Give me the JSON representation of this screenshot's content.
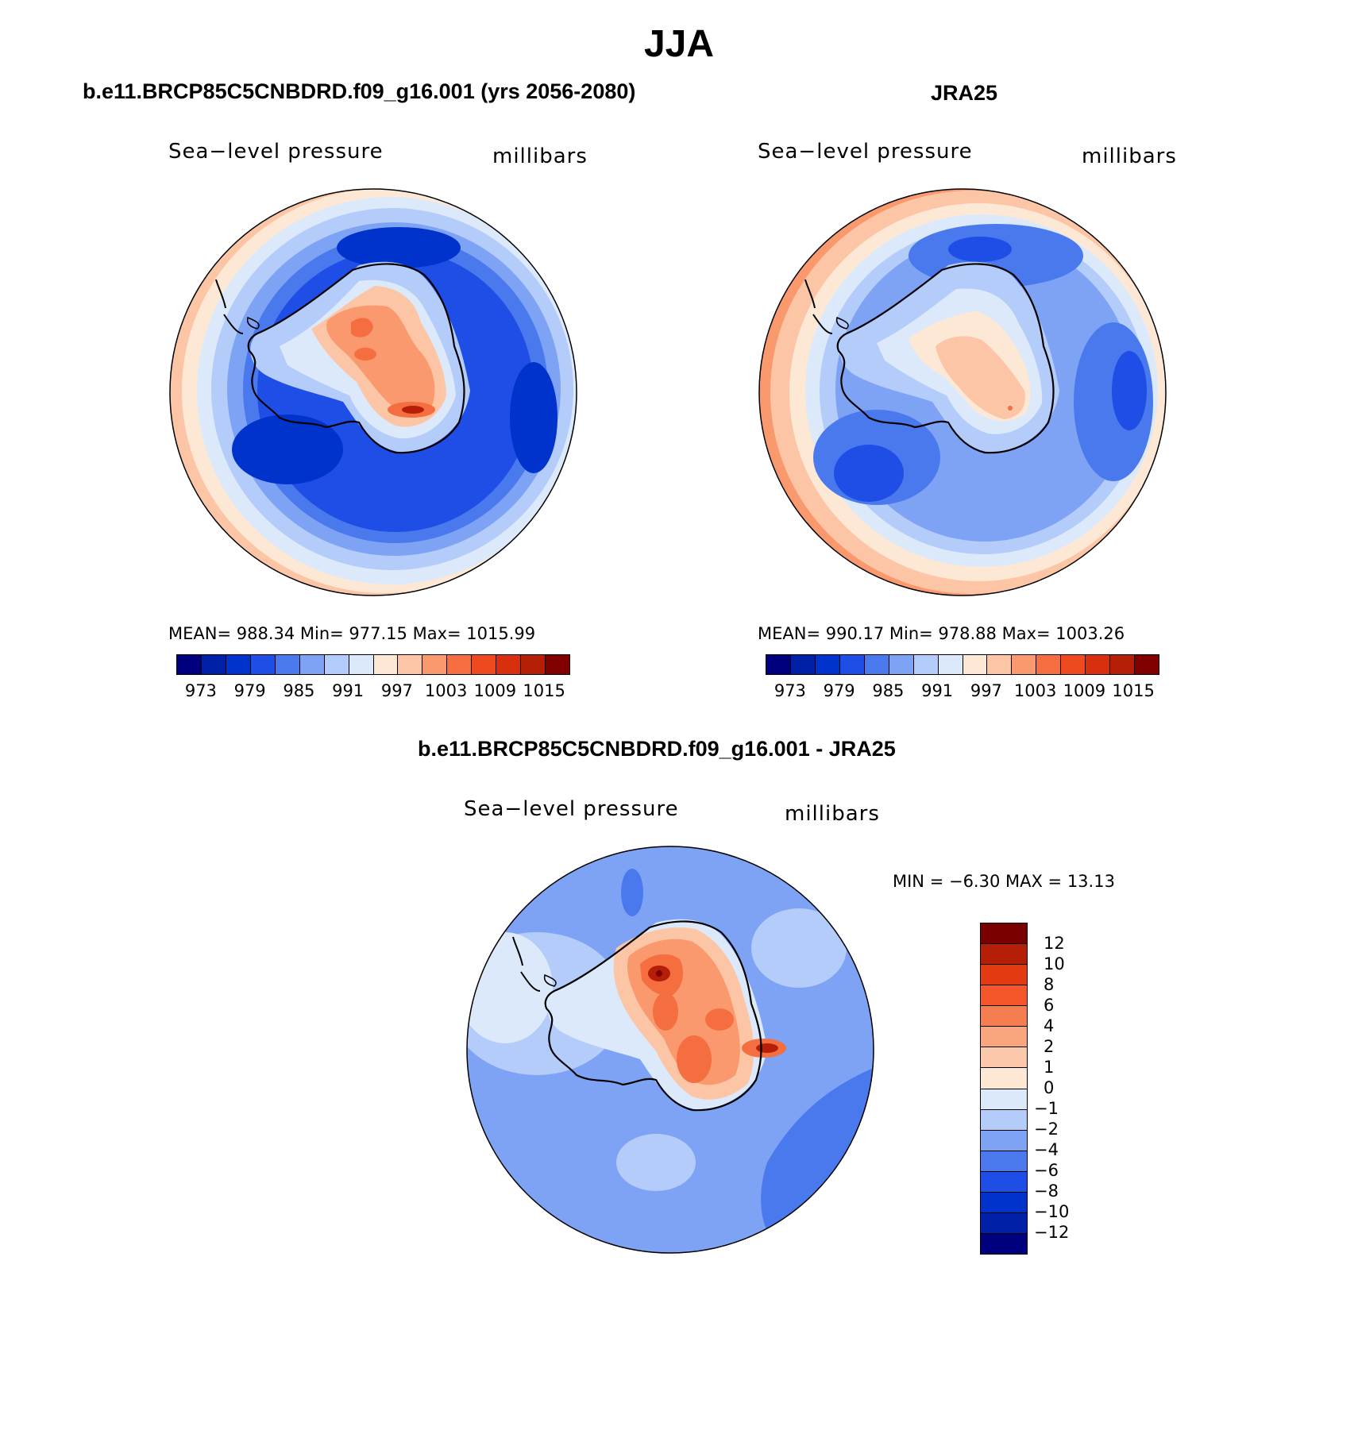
{
  "title": "JJA",
  "panels": [
    {
      "title": "b.e11.BRCP85C5CNBDRD.f09_g16.001 (yrs 2056-2080)",
      "field_label": "Sea−level pressure",
      "units_label": "millibars",
      "stats": "MEAN= 988.34   Min= 977.15   Max= 1015.99",
      "colorbar_ticks": [
        "973",
        "979",
        "985",
        "991",
        "997",
        "1003",
        "1009",
        "1015"
      ]
    },
    {
      "title": "JRA25",
      "field_label": "Sea−level pressure",
      "units_label": "millibars",
      "stats": "MEAN= 990.17   Min= 978.88   Max= 1003.26",
      "colorbar_ticks": [
        "973",
        "979",
        "985",
        "991",
        "997",
        "1003",
        "1009",
        "1015"
      ]
    },
    {
      "title": "b.e11.BRCP85C5CNBDRD.f09_g16.001 - JRA25",
      "field_label": "Sea−level pressure",
      "units_label": "millibars",
      "stats": "MIN =   −6.30  MAX =   13.13",
      "colorbar_ticks": [
        "12",
        "10",
        "8",
        "6",
        "4",
        "2",
        "1",
        "0",
        "−1",
        "−2",
        "−4",
        "−6",
        "−8",
        "−10",
        "−12"
      ]
    }
  ],
  "colors": {
    "palette": [
      "#00007f",
      "#0020a8",
      "#0033cc",
      "#1f4ee6",
      "#4a79ee",
      "#7ea3f5",
      "#b4ccfa",
      "#dce9fb",
      "#fde8d6",
      "#fcc6a6",
      "#f9996d",
      "#f56e40",
      "#ef4a1f",
      "#d8300f",
      "#b51e07",
      "#800000"
    ],
    "diff_palette": [
      "#7a0000",
      "#b51e07",
      "#e33a12",
      "#f5562a",
      "#f57d4f",
      "#f9a57d",
      "#fcc8ab",
      "#fde8d6",
      "#dce9fb",
      "#b4ccfa",
      "#7ea3f5",
      "#4a79ee",
      "#1f4ee6",
      "#0033cc",
      "#0020a8",
      "#00007f"
    ],
    "coastline": "#000000"
  }
}
